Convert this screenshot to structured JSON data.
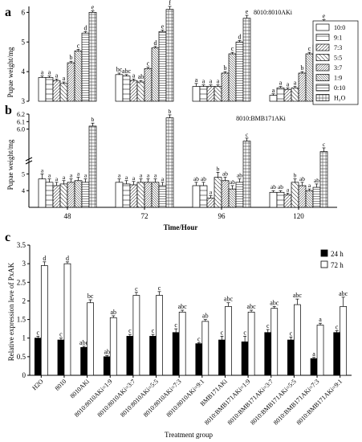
{
  "panels": {
    "a": {
      "label": "a"
    },
    "b": {
      "label": "b"
    },
    "c": {
      "label": "c"
    }
  },
  "chart_data": [
    {
      "type": "bar",
      "panel": "a",
      "annotation": "8010:8010AKi",
      "ylabel": "Pupae weight/mg",
      "ylim": [
        3,
        6.2
      ],
      "yticks": [
        3,
        4,
        5,
        6
      ],
      "xaxis_shared_with": "b",
      "categories": [
        "48",
        "72",
        "96",
        "120"
      ],
      "grid": false,
      "legend_position": "right",
      "legend": [
        "10:0",
        "9:1",
        "7:3",
        "5:5",
        "3:7",
        "1:9",
        "0:10",
        "H₂O"
      ],
      "series": [
        {
          "name": "10:0",
          "values": [
            3.8,
            3.9,
            3.5,
            3.2
          ],
          "errors": [
            0.05,
            0.05,
            0.1,
            0.05
          ],
          "labels": [
            "a",
            "bc",
            "a",
            "a"
          ]
        },
        {
          "name": "9:1",
          "values": [
            3.8,
            3.85,
            3.5,
            3.45
          ],
          "errors": [
            0.05,
            0.05,
            0.05,
            0.05
          ],
          "labels": [
            "a",
            "abc",
            "a",
            "a"
          ]
        },
        {
          "name": "7:3",
          "values": [
            3.7,
            3.7,
            3.5,
            3.4
          ],
          "errors": [
            0.05,
            0.05,
            0.05,
            0.05
          ],
          "labels": [
            "a",
            "a",
            "a",
            "a"
          ]
        },
        {
          "name": "5:5",
          "values": [
            3.6,
            3.65,
            3.5,
            3.45
          ],
          "errors": [
            0.05,
            0.05,
            0.05,
            0.05
          ],
          "labels": [
            "a",
            "ab",
            "a",
            "a"
          ]
        },
        {
          "name": "3:7",
          "values": [
            4.3,
            4.1,
            3.95,
            3.95
          ],
          "errors": [
            0.05,
            0.05,
            0.05,
            0.05
          ],
          "labels": [
            "b",
            "c",
            "b",
            "b"
          ]
        },
        {
          "name": "1:9",
          "values": [
            4.7,
            4.8,
            4.6,
            4.6
          ],
          "errors": [
            0.05,
            0.05,
            0.05,
            0.05
          ],
          "labels": [
            "c",
            "d",
            "c",
            "c"
          ]
        },
        {
          "name": "0:10",
          "values": [
            5.3,
            5.35,
            5.0,
            4.9
          ],
          "errors": [
            0.05,
            0.05,
            0.05,
            0.05
          ],
          "labels": [
            "d",
            "e",
            "d",
            "d"
          ]
        },
        {
          "name": "H₂O",
          "values": [
            6.0,
            6.1,
            5.8,
            5.7
          ],
          "errors": [
            0.05,
            0.1,
            0.1,
            0.05
          ],
          "labels": [
            "e",
            "f",
            "e",
            "e"
          ]
        }
      ]
    },
    {
      "type": "bar",
      "panel": "b",
      "annotation": "8010:BMB171AKi",
      "ylabel": "Pupae weight/mg",
      "xlabel": "Time/Hour",
      "ylim": [
        3,
        6.2
      ],
      "yticks": [
        "4",
        "5",
        "6.0",
        "6.1",
        "6.2"
      ],
      "yticks_top": [
        "5.9",
        "6.0",
        "6.1",
        "6.2"
      ],
      "axis_break": true,
      "categories": [
        "48",
        "72",
        "96",
        "120"
      ],
      "grid": false,
      "series": [
        {
          "name": "10:0",
          "values": [
            4.7,
            4.5,
            4.3,
            3.9
          ],
          "errors": [
            0.3,
            0.2,
            0.2,
            0.1
          ],
          "labels": [
            "a",
            "a",
            "ab",
            "ab"
          ]
        },
        {
          "name": "9:1",
          "values": [
            4.5,
            4.4,
            4.3,
            3.9
          ],
          "errors": [
            0.2,
            0.2,
            0.2,
            0.1
          ],
          "labels": [
            "a",
            "a",
            "ab",
            "ab"
          ]
        },
        {
          "name": "7:3",
          "values": [
            4.3,
            4.35,
            3.55,
            3.75
          ],
          "errors": [
            0.2,
            0.2,
            0.15,
            0.1
          ],
          "labels": [
            "a",
            "a",
            "a",
            "a"
          ]
        },
        {
          "name": "5:5",
          "values": [
            4.4,
            4.5,
            4.8,
            4.5
          ],
          "errors": [
            0.2,
            0.2,
            0.3,
            0.2
          ],
          "labels": [
            "a",
            "a",
            "b",
            "b"
          ]
        },
        {
          "name": "3:7",
          "values": [
            4.5,
            4.5,
            4.6,
            4.3
          ],
          "errors": [
            0.2,
            0.2,
            0.2,
            0.2
          ],
          "labels": [
            "a",
            "a",
            "ab",
            "ab"
          ]
        },
        {
          "name": "1:9",
          "values": [
            4.6,
            4.5,
            4.1,
            4.0
          ],
          "errors": [
            0.2,
            0.2,
            0.2,
            0.1
          ],
          "labels": [
            "a",
            "a",
            "ab",
            "a"
          ]
        },
        {
          "name": "0:10",
          "values": [
            4.5,
            4.3,
            4.5,
            4.2
          ],
          "errors": [
            0.2,
            0.2,
            0.2,
            0.2
          ],
          "labels": [
            "a",
            "a",
            "ab",
            "ab"
          ]
        },
        {
          "name": "H₂O",
          "values": [
            6.04,
            6.15,
            5.84,
            5.7
          ],
          "errors": [
            0.04,
            0.04,
            0.04,
            0.05
          ],
          "labels": [
            "b",
            "b",
            "c",
            "c"
          ]
        }
      ]
    },
    {
      "type": "bar",
      "panel": "c",
      "ylabel": "Relative expression leve of PxAK",
      "xlabel": "Treatment group",
      "ylim": [
        0,
        3.5
      ],
      "yticks": [
        "0",
        "0.5",
        "1",
        "1.5",
        "2",
        "2.5",
        "3",
        "3.5"
      ],
      "legend_position": "top-right",
      "categories": [
        "H2O",
        "8010",
        "8010AKi",
        "8010:8010AKi=1:9",
        "8010:8010AKi=3:7",
        "8010:8010AKi=5:5",
        "8010:8010AKi=7:3",
        "8010:8010AKi=9:1",
        "BMB171AKi",
        "8010:BMB171AKi=1:9",
        "8010:BMB171AKi=3:7",
        "8010:BMB171AKi=5:5",
        "8010:BMB171AKi=7:3",
        "8010:BMB171AKi=9:1"
      ],
      "series": [
        {
          "name": "24 h",
          "color": "#000000",
          "values": [
            1.0,
            0.95,
            0.75,
            0.5,
            1.05,
            1.05,
            1.15,
            0.85,
            0.95,
            0.9,
            1.15,
            0.95,
            0.45,
            1.15
          ],
          "errors": [
            0.05,
            0.05,
            0.03,
            0.03,
            0.05,
            0.05,
            0.1,
            0.03,
            0.1,
            0.15,
            0.08,
            0.08,
            0.03,
            0.05
          ],
          "labels": [
            "c",
            "c",
            "abc",
            "ab",
            "c",
            "c",
            "c",
            "c",
            "c",
            "c",
            "c",
            "c",
            "a",
            "c"
          ]
        },
        {
          "name": "72 h",
          "color": "#ffffff",
          "values": [
            2.95,
            3.0,
            1.95,
            1.55,
            2.15,
            2.15,
            1.7,
            1.45,
            1.85,
            1.7,
            1.8,
            1.9,
            1.35,
            1.85
          ],
          "errors": [
            0.1,
            0.05,
            0.08,
            0.05,
            0.08,
            0.1,
            0.05,
            0.05,
            0.1,
            0.05,
            0.05,
            0.15,
            0.05,
            0.25
          ],
          "labels": [
            "d",
            "d",
            "bc",
            "ab",
            "c",
            "c",
            "abc",
            "ab",
            "abc",
            "abc",
            "abc",
            "abc",
            "a",
            "abc"
          ]
        }
      ]
    }
  ]
}
